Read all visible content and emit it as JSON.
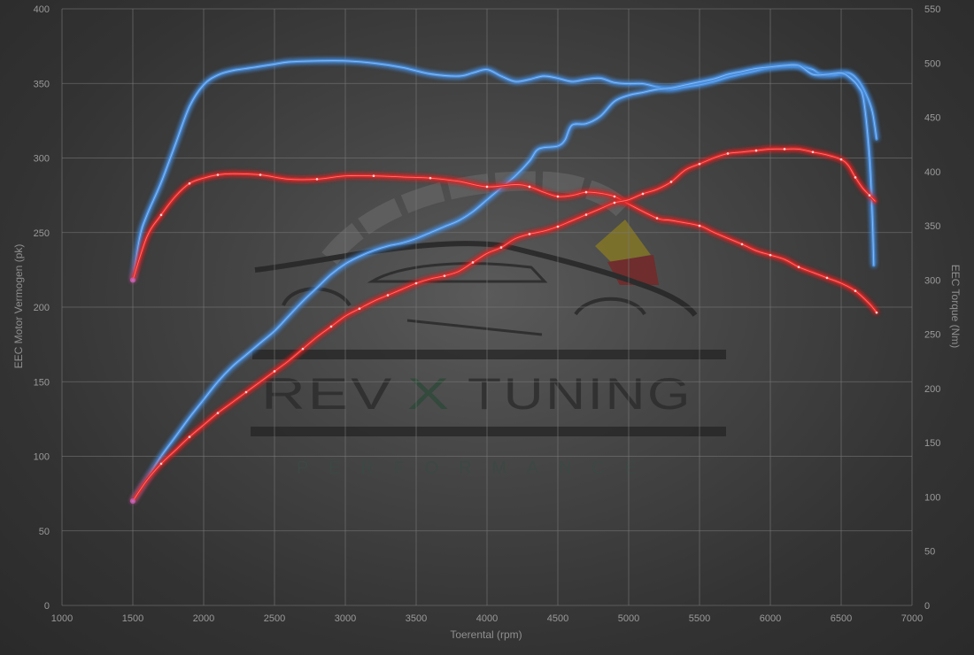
{
  "chart_data": {
    "type": "line",
    "xlabel": "Toerental (rpm)",
    "ylabel_left": "EEC Motor Vermogen (pk)",
    "ylabel_right": "EEC Torque (Nm)",
    "xlim": [
      1000,
      7000
    ],
    "ylim_left": [
      0,
      400
    ],
    "ylim_right": [
      0,
      550
    ],
    "x_ticks": [
      1000,
      1500,
      2000,
      2500,
      3000,
      3500,
      4000,
      4500,
      5000,
      5500,
      6000,
      6500,
      7000
    ],
    "y_ticks_left": [
      0,
      50,
      100,
      150,
      200,
      250,
      300,
      350,
      400
    ],
    "y_ticks_right": [
      0,
      50,
      100,
      150,
      200,
      250,
      300,
      350,
      400,
      450,
      500,
      550
    ],
    "grid": true,
    "colors": {
      "tuned": "#4a90e2",
      "stock": "#e02626"
    },
    "series": [
      {
        "axis": "right",
        "color": "#4a90e2",
        "points": [
          [
            1500,
            300
          ],
          [
            1550,
            340
          ],
          [
            1600,
            360
          ],
          [
            1700,
            390
          ],
          [
            1800,
            425
          ],
          [
            1900,
            460
          ],
          [
            2000,
            480
          ],
          [
            2100,
            489
          ],
          [
            2200,
            493
          ],
          [
            2300,
            495
          ],
          [
            2400,
            497
          ],
          [
            2500,
            499
          ],
          [
            2600,
            501
          ],
          [
            2800,
            502
          ],
          [
            3000,
            502
          ],
          [
            3200,
            500
          ],
          [
            3400,
            496
          ],
          [
            3600,
            490
          ],
          [
            3800,
            488
          ],
          [
            3900,
            491
          ],
          [
            4000,
            494
          ],
          [
            4100,
            488
          ],
          [
            4200,
            483
          ],
          [
            4300,
            485
          ],
          [
            4400,
            488
          ],
          [
            4500,
            486
          ],
          [
            4600,
            483
          ],
          [
            4700,
            485
          ],
          [
            4800,
            486
          ],
          [
            4900,
            482
          ],
          [
            5000,
            481
          ],
          [
            5100,
            481
          ],
          [
            5200,
            478
          ],
          [
            5300,
            476
          ],
          [
            5400,
            478
          ],
          [
            5500,
            480
          ],
          [
            5600,
            483
          ],
          [
            5700,
            487
          ],
          [
            5800,
            490
          ],
          [
            5900,
            493
          ],
          [
            6000,
            496
          ],
          [
            6100,
            497
          ],
          [
            6200,
            497
          ],
          [
            6300,
            494
          ],
          [
            6350,
            490
          ],
          [
            6450,
            489
          ],
          [
            6550,
            491
          ],
          [
            6620,
            484
          ],
          [
            6680,
            470
          ],
          [
            6720,
            455
          ],
          [
            6750,
            430
          ]
        ]
      },
      {
        "axis": "left",
        "color": "#4a90e2",
        "points": [
          [
            1500,
            70
          ],
          [
            1600,
            85
          ],
          [
            1700,
            100
          ],
          [
            1800,
            113
          ],
          [
            1900,
            126
          ],
          [
            2000,
            138
          ],
          [
            2100,
            150
          ],
          [
            2200,
            160
          ],
          [
            2300,
            168
          ],
          [
            2400,
            176
          ],
          [
            2500,
            184
          ],
          [
            2600,
            194
          ],
          [
            2700,
            204
          ],
          [
            2800,
            213
          ],
          [
            2900,
            222
          ],
          [
            3000,
            229
          ],
          [
            3100,
            234
          ],
          [
            3200,
            238
          ],
          [
            3300,
            241
          ],
          [
            3400,
            243
          ],
          [
            3500,
            246
          ],
          [
            3600,
            250
          ],
          [
            3700,
            254
          ],
          [
            3800,
            258
          ],
          [
            3900,
            264
          ],
          [
            4000,
            272
          ],
          [
            4100,
            280
          ],
          [
            4200,
            288
          ],
          [
            4300,
            298
          ],
          [
            4350,
            305
          ],
          [
            4400,
            307
          ],
          [
            4500,
            308
          ],
          [
            4550,
            312
          ],
          [
            4600,
            322
          ],
          [
            4700,
            323
          ],
          [
            4800,
            328
          ],
          [
            4900,
            338
          ],
          [
            5000,
            342
          ],
          [
            5100,
            344
          ],
          [
            5200,
            346
          ],
          [
            5300,
            347
          ],
          [
            5400,
            349
          ],
          [
            5500,
            351
          ],
          [
            5600,
            353
          ],
          [
            5700,
            356
          ],
          [
            5800,
            358
          ],
          [
            5900,
            360
          ],
          [
            6000,
            361
          ],
          [
            6100,
            362
          ],
          [
            6200,
            362
          ],
          [
            6300,
            356
          ],
          [
            6400,
            356
          ],
          [
            6500,
            357
          ],
          [
            6560,
            354
          ],
          [
            6620,
            348
          ],
          [
            6660,
            338
          ],
          [
            6700,
            300
          ],
          [
            6720,
            260
          ],
          [
            6730,
            228
          ]
        ]
      },
      {
        "axis": "right",
        "color": "#e02626",
        "points": [
          [
            1500,
            300
          ],
          [
            1600,
            340
          ],
          [
            1700,
            360
          ],
          [
            1800,
            377
          ],
          [
            1900,
            389
          ],
          [
            2000,
            394
          ],
          [
            2100,
            397
          ],
          [
            2200,
            398
          ],
          [
            2400,
            397
          ],
          [
            2600,
            393
          ],
          [
            2800,
            393
          ],
          [
            3000,
            396
          ],
          [
            3200,
            396
          ],
          [
            3400,
            395
          ],
          [
            3600,
            394
          ],
          [
            3800,
            391
          ],
          [
            4000,
            386
          ],
          [
            4200,
            388
          ],
          [
            4300,
            386
          ],
          [
            4400,
            381
          ],
          [
            4500,
            377
          ],
          [
            4600,
            378
          ],
          [
            4700,
            381
          ],
          [
            4800,
            380
          ],
          [
            4900,
            377
          ],
          [
            5000,
            370
          ],
          [
            5200,
            357
          ],
          [
            5300,
            355
          ],
          [
            5500,
            350
          ],
          [
            5600,
            344
          ],
          [
            5800,
            333
          ],
          [
            5900,
            327
          ],
          [
            6000,
            323
          ],
          [
            6100,
            319
          ],
          [
            6200,
            312
          ],
          [
            6300,
            307
          ],
          [
            6400,
            302
          ],
          [
            6500,
            297
          ],
          [
            6600,
            290
          ],
          [
            6700,
            278
          ],
          [
            6750,
            270
          ]
        ]
      },
      {
        "axis": "left",
        "color": "#e02626",
        "points": [
          [
            1500,
            70
          ],
          [
            1600,
            84
          ],
          [
            1700,
            95
          ],
          [
            1800,
            104
          ],
          [
            1900,
            113
          ],
          [
            2000,
            121
          ],
          [
            2100,
            129
          ],
          [
            2200,
            136
          ],
          [
            2300,
            143
          ],
          [
            2400,
            150
          ],
          [
            2500,
            157
          ],
          [
            2600,
            164
          ],
          [
            2700,
            172
          ],
          [
            2800,
            180
          ],
          [
            2900,
            187
          ],
          [
            3000,
            194
          ],
          [
            3100,
            199
          ],
          [
            3200,
            204
          ],
          [
            3300,
            208
          ],
          [
            3400,
            212
          ],
          [
            3500,
            216
          ],
          [
            3600,
            219
          ],
          [
            3700,
            221
          ],
          [
            3800,
            224
          ],
          [
            3900,
            230
          ],
          [
            4000,
            236
          ],
          [
            4100,
            240
          ],
          [
            4200,
            246
          ],
          [
            4300,
            249
          ],
          [
            4400,
            251
          ],
          [
            4500,
            254
          ],
          [
            4600,
            258
          ],
          [
            4700,
            262
          ],
          [
            4800,
            266
          ],
          [
            4900,
            270
          ],
          [
            5000,
            272
          ],
          [
            5100,
            276
          ],
          [
            5200,
            279
          ],
          [
            5300,
            284
          ],
          [
            5400,
            292
          ],
          [
            5500,
            296
          ],
          [
            5600,
            300
          ],
          [
            5700,
            303
          ],
          [
            5800,
            304
          ],
          [
            5900,
            305
          ],
          [
            6000,
            306
          ],
          [
            6100,
            306
          ],
          [
            6200,
            306
          ],
          [
            6300,
            304
          ],
          [
            6400,
            302
          ],
          [
            6500,
            299
          ],
          [
            6550,
            295
          ],
          [
            6600,
            287
          ],
          [
            6650,
            280
          ],
          [
            6700,
            275
          ],
          [
            6740,
            271
          ]
        ]
      }
    ]
  },
  "watermark": {
    "brand_left": "REV",
    "brand_mid": "X",
    "brand_right": "TUNING",
    "subtitle": "PERFORMANCE"
  }
}
